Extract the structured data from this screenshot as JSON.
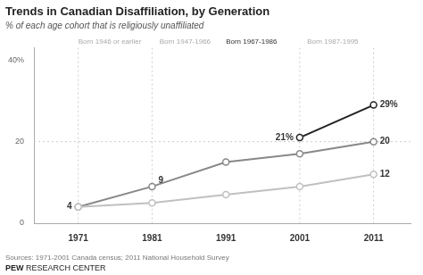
{
  "chart_data": {
    "type": "line",
    "title": "Trends in Canadian Disaffiliation, by Generation",
    "subtitle": "% of each age cohort that is religiously unaffiliated",
    "source": "Sources: 1971-2001 Canada census; 2011 National Household Survey",
    "footer": "PEW RESEARCH CENTER",
    "xlim": [
      1965,
      2016
    ],
    "xticks": [
      1971,
      1981,
      1991,
      2001,
      2011
    ],
    "ylim": [
      0,
      43
    ],
    "yticks": [
      0,
      20,
      {
        "value": 40,
        "label": "40%"
      }
    ],
    "grid": false,
    "marker": "circle",
    "series": [
      {
        "name": "Born 1946 or earlier",
        "color": "#c0c0c0",
        "x": [
          1971,
          1981,
          1991,
          2001,
          2011
        ],
        "values": [
          4,
          5,
          7,
          9,
          12
        ]
      },
      {
        "name": "Born 1947-1966",
        "color": "#888888",
        "x": [
          1971,
          1981,
          1991,
          2001,
          2011
        ],
        "values": [
          4,
          9,
          15,
          17,
          20
        ]
      },
      {
        "name": "Born 1967-1986",
        "color": "#222222",
        "x": [
          2001,
          2011
        ],
        "values": [
          21,
          29
        ]
      }
    ],
    "hline": 20,
    "vlines": [
      1971,
      1981,
      2001,
      2011
    ],
    "gen_labels": [
      {
        "text": "Born 1946 or earlier",
        "x": 1971,
        "color": "#aaaaaa"
      },
      {
        "text": "Born 1947-1966",
        "x": 1982,
        "color": "#aaaaaa"
      },
      {
        "text": "Born 1967-1986",
        "x": 1991,
        "color": "#333333"
      },
      {
        "text": "Born 1987-1995",
        "x": 2002,
        "color": "#aaaaaa"
      }
    ],
    "annotations": [
      {
        "text": "4",
        "x": 1971,
        "y": 4
      },
      {
        "text": "9",
        "x": 1981,
        "y": 9
      },
      {
        "text": "21%",
        "x": 2001,
        "y": 21
      },
      {
        "text": "29%",
        "x": 2011,
        "y": 29
      },
      {
        "text": "20",
        "x": 2011,
        "y": 20
      },
      {
        "text": "12",
        "x": 2011,
        "y": 12
      }
    ]
  }
}
